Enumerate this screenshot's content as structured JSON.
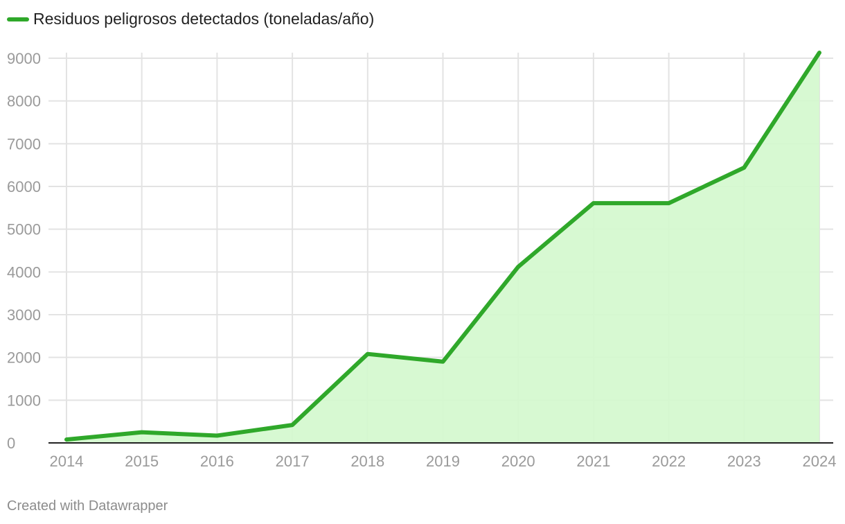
{
  "legend": {
    "label": "Residuos peligrosos detectados (toneladas/año)",
    "color": "#2fa82a"
  },
  "credit": "Created with Datawrapper",
  "colors": {
    "line": "#2fa82a",
    "area": "#d3f8cd",
    "grid": "#e3e3e3",
    "axis": "#222222",
    "ticks": "#9a9a9a"
  },
  "chart_data": {
    "type": "area",
    "x": [
      2014,
      2015,
      2016,
      2017,
      2018,
      2019,
      2020,
      2021,
      2022,
      2023,
      2024
    ],
    "series": [
      {
        "name": "Residuos peligrosos detectados (toneladas/año)",
        "values": [
          80,
          250,
          170,
          420,
          2080,
          1900,
          4120,
          5610,
          5610,
          6440,
          9130
        ]
      }
    ],
    "yticks": [
      0,
      1000,
      2000,
      3000,
      4000,
      5000,
      6000,
      7000,
      8000,
      9000
    ],
    "ylim": [
      0,
      9000
    ],
    "grid": true,
    "legend_position": "top-left"
  }
}
